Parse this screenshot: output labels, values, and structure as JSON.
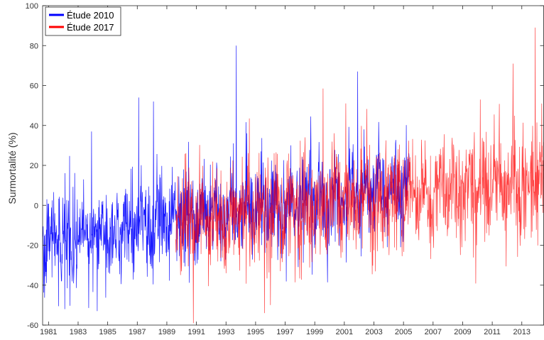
{
  "chart_data": {
    "type": "line",
    "title": "",
    "xlabel": "",
    "ylabel": "Surmortalité (%)",
    "xlim": [
      1980.6,
      2014.5
    ],
    "ylim": [
      -60,
      100
    ],
    "yticks": [
      -60,
      -40,
      -20,
      0,
      20,
      40,
      60,
      80,
      100
    ],
    "xticks": [
      "1981",
      "1983",
      "1985",
      "1987",
      "1989",
      "1991",
      "1993",
      "1995",
      "1997",
      "1999",
      "2001",
      "2003",
      "2005",
      "2007",
      "2009",
      "2011",
      "2013"
    ],
    "legend_position": "top-left",
    "grid": false,
    "series": [
      {
        "name": "Étude 2010",
        "color": "#0000ff",
        "x_start": 1980.6,
        "x_end": 2005.4,
        "trend_start": -18,
        "trend_end": 10,
        "spread": 11,
        "peaks": [
          {
            "x": 1987.1,
            "y": 54
          },
          {
            "x": 1988.1,
            "y": 52
          },
          {
            "x": 1993.7,
            "y": 80
          },
          {
            "x": 2001.9,
            "y": 67
          },
          {
            "x": 1983.9,
            "y": 37
          },
          {
            "x": 1982.1,
            "y": -52
          },
          {
            "x": 1984.3,
            "y": -53
          }
        ]
      },
      {
        "name": "Étude 2017",
        "color": "#ff0000",
        "x_start": 1989.6,
        "x_end": 2014.5,
        "trend_start": -8,
        "trend_end": 12,
        "spread": 13,
        "peaks": [
          {
            "x": 2013.9,
            "y": 89
          },
          {
            "x": 2012.4,
            "y": 71
          },
          {
            "x": 1990.8,
            "y": -59
          },
          {
            "x": 1995.6,
            "y": -54
          },
          {
            "x": 2001.1,
            "y": 51
          },
          {
            "x": 2010.2,
            "y": 53
          }
        ]
      }
    ]
  }
}
